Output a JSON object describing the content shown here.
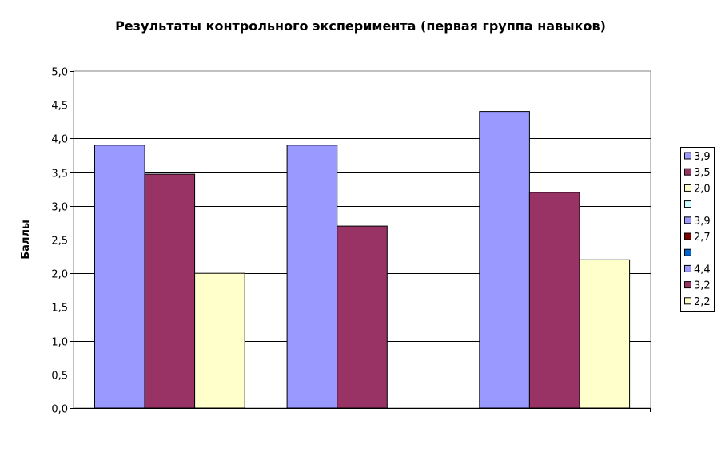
{
  "chart_data": {
    "type": "bar",
    "title": "Результаты контрольного эксперимента (первая группа навыков)",
    "ylabel": "Баллы",
    "xlabel": "",
    "ylim": [
      0,
      5
    ],
    "y_ticks": [
      "0,0",
      "0,5",
      "1,0",
      "1,5",
      "2,0",
      "2,5",
      "3,0",
      "3,5",
      "4,0",
      "4,5",
      "5,0"
    ],
    "y_tick_step": 0.5,
    "grid": true,
    "legend_position": "right",
    "groups": [
      {
        "bars": [
          {
            "value": 3.9,
            "color": "#9999ff"
          },
          {
            "value": 3.47,
            "color": "#993366"
          },
          {
            "value": 2.0,
            "color": "#ffffcc"
          }
        ]
      },
      {
        "bars": [
          {
            "value": 3.9,
            "color": "#9999ff"
          },
          {
            "value": 2.7,
            "color": "#993366"
          }
        ]
      },
      {
        "bars": [
          {
            "value": 4.4,
            "color": "#9999ff"
          },
          {
            "value": 3.2,
            "color": "#993366"
          },
          {
            "value": 2.2,
            "color": "#ffffcc"
          }
        ]
      }
    ],
    "legend": [
      {
        "label": "3,9",
        "color": "#9999ff"
      },
      {
        "label": "3,5",
        "color": "#993366"
      },
      {
        "label": "2,0",
        "color": "#ffffcc"
      },
      {
        "label": "",
        "color": "#ccffff"
      },
      {
        "label": "3,9",
        "color": "#9999ff"
      },
      {
        "label": "2,7",
        "color": "#800000"
      },
      {
        "label": "",
        "color": "#0066cc"
      },
      {
        "label": "4,4",
        "color": "#9999ff"
      },
      {
        "label": "3,2",
        "color": "#993366"
      },
      {
        "label": "2,2",
        "color": "#ffffcc"
      }
    ]
  }
}
